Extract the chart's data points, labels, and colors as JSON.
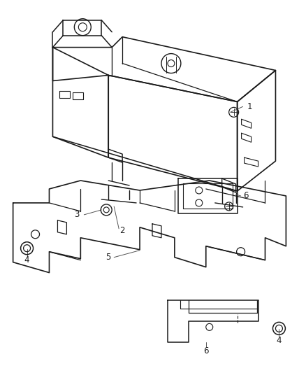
{
  "background_color": "#ffffff",
  "line_color": "#1a1a1a",
  "label_color": "#1a1a1a",
  "fig_width": 4.38,
  "fig_height": 5.33,
  "dpi": 100
}
